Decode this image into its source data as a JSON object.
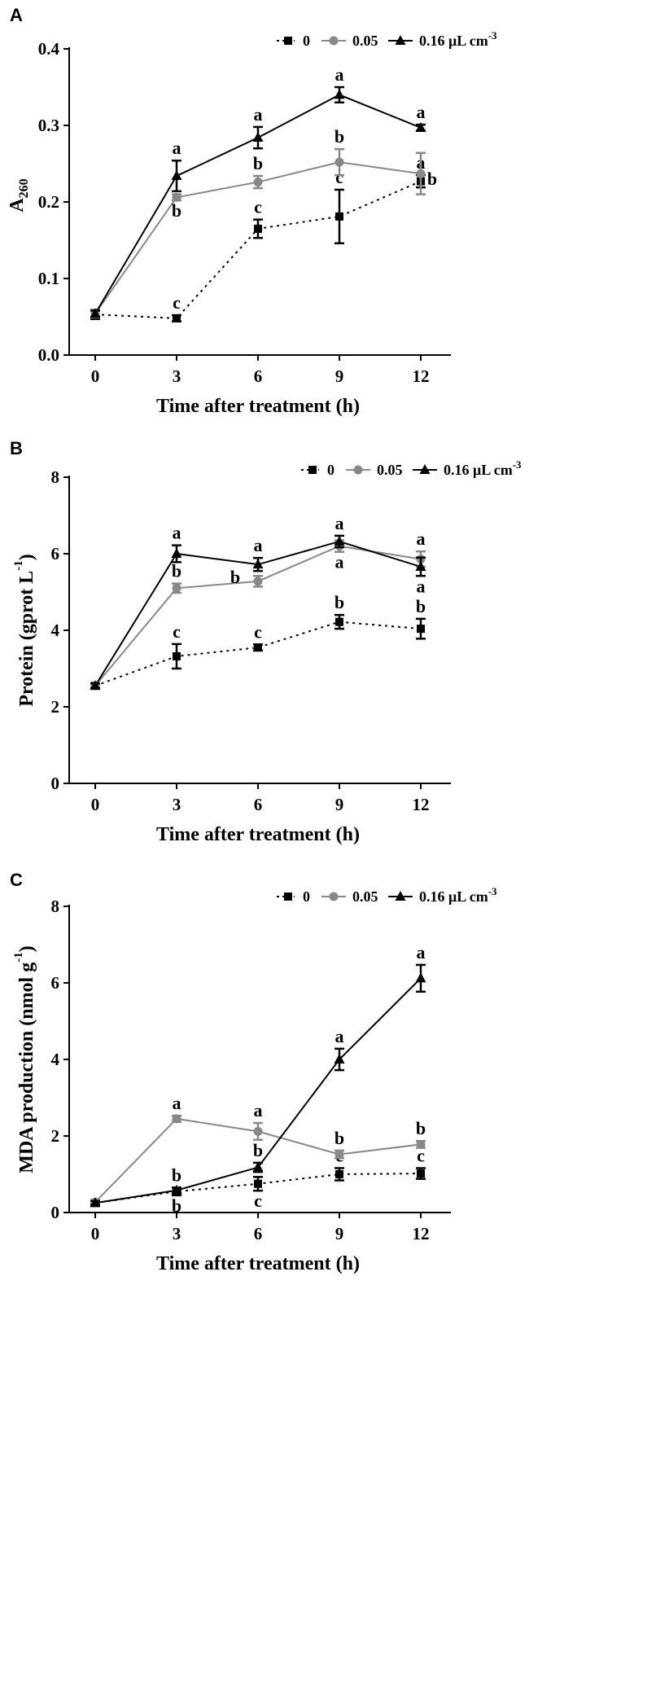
{
  "chart_data": [
    {
      "type": "line",
      "panel": "A",
      "xlabel": "Time after treatment (h)",
      "ylabel": "A",
      "ylabel_sub": "260",
      "x": [
        0,
        3,
        6,
        9,
        12
      ],
      "xticks": [
        "0",
        "3",
        "6",
        "9",
        "12"
      ],
      "ylim": [
        0,
        0.4
      ],
      "yticks": [
        "0.0",
        "0.1",
        "0.2",
        "0.3",
        "0.4"
      ],
      "legend": {
        "position": "top-right",
        "entries": [
          "0",
          "0.05",
          "0.16 μL cm",
          "-3"
        ]
      },
      "series": [
        {
          "name": "0",
          "color": "#000000",
          "style": "dotted",
          "marker": "square",
          "values": [
            0.053,
            0.048,
            0.165,
            0.181,
            0.227
          ],
          "errors": [
            0.006,
            0.004,
            0.012,
            0.035,
            0.008
          ],
          "letters": [
            "",
            "c",
            "c",
            "c",
            "a"
          ],
          "letter_pos": [
            "",
            "above",
            "above",
            "above",
            "above"
          ]
        },
        {
          "name": "0.05",
          "color": "#888888",
          "style": "solid",
          "marker": "circle",
          "values": [
            0.054,
            0.206,
            0.226,
            0.252,
            0.237
          ],
          "errors": [
            0.005,
            0.004,
            0.008,
            0.017,
            0.027
          ],
          "letters": [
            "",
            "b",
            "b",
            "b",
            "b"
          ],
          "letter_pos": [
            "",
            "below",
            "above",
            "above",
            "right"
          ]
        },
        {
          "name": "0.16 μL cm-3",
          "color": "#000000",
          "style": "solid",
          "marker": "triangle",
          "values": [
            0.054,
            0.234,
            0.284,
            0.34,
            0.297
          ],
          "errors": [
            0.004,
            0.02,
            0.014,
            0.01,
            0.004
          ],
          "letters": [
            "",
            "a",
            "a",
            "a",
            "a"
          ],
          "letter_pos": [
            "",
            "above",
            "above",
            "above",
            "above"
          ]
        }
      ]
    },
    {
      "type": "line",
      "panel": "B",
      "xlabel": "Time after treatment (h)",
      "ylabel": "Protein  (gprot L",
      "ylabel_sup": "-1",
      "ylabel_end": ")",
      "x": [
        0,
        3,
        6,
        9,
        12
      ],
      "xticks": [
        "0",
        "3",
        "6",
        "9",
        "12"
      ],
      "ylim": [
        0,
        8
      ],
      "yticks": [
        "0",
        "2",
        "4",
        "6",
        "8"
      ],
      "legend": {
        "position": "top-right",
        "entries": [
          "0",
          "0.05",
          "0.16 μL cm",
          "-3"
        ]
      },
      "series": [
        {
          "name": "0",
          "color": "#000000",
          "style": "dotted",
          "marker": "square",
          "values": [
            2.55,
            3.32,
            3.55,
            4.22,
            4.04
          ],
          "errors": [
            0.06,
            0.32,
            0.08,
            0.18,
            0.26
          ],
          "letters": [
            "",
            "c",
            "c",
            "b",
            "b"
          ],
          "letter_pos": [
            "",
            "above",
            "above",
            "above",
            "above"
          ]
        },
        {
          "name": "0.05",
          "color": "#888888",
          "style": "solid",
          "marker": "circle",
          "values": [
            2.55,
            5.1,
            5.28,
            6.2,
            5.86
          ],
          "errors": [
            0.06,
            0.12,
            0.14,
            0.15,
            0.2
          ],
          "letters": [
            "",
            "b",
            "b",
            "a",
            "a"
          ],
          "letter_pos": [
            "",
            "above",
            "left",
            "below",
            "above"
          ]
        },
        {
          "name": "0.16 μL cm-3",
          "color": "#000000",
          "style": "solid",
          "marker": "triangle",
          "values": [
            2.55,
            6.0,
            5.72,
            6.32,
            5.66
          ],
          "errors": [
            0.06,
            0.22,
            0.17,
            0.15,
            0.24
          ],
          "letters": [
            "",
            "a",
            "a",
            "a",
            "a"
          ],
          "letter_pos": [
            "",
            "above",
            "above",
            "above",
            "below"
          ]
        }
      ]
    },
    {
      "type": "line",
      "panel": "C",
      "xlabel": "Time after treatment (h)",
      "ylabel": "MDA production (nmol g",
      "ylabel_sup": "-1",
      "ylabel_end": ")",
      "x": [
        0,
        3,
        6,
        9,
        12
      ],
      "xticks": [
        "0",
        "3",
        "6",
        "9",
        "12"
      ],
      "ylim": [
        0,
        8
      ],
      "yticks": [
        "0",
        "2",
        "4",
        "6",
        "8"
      ],
      "legend": {
        "position": "top-right",
        "entries": [
          "0",
          "0.05",
          "0.16 μL cm",
          "-3"
        ]
      },
      "series": [
        {
          "name": "0",
          "color": "#000000",
          "style": "dotted",
          "marker": "square",
          "values": [
            0.25,
            0.55,
            0.75,
            1.0,
            1.02
          ],
          "errors": [
            0.05,
            0.1,
            0.18,
            0.16,
            0.14
          ],
          "letters": [
            "",
            "b",
            "c",
            "c",
            "c"
          ],
          "letter_pos": [
            "",
            "below",
            "below",
            "above",
            "above"
          ]
        },
        {
          "name": "0.05",
          "color": "#888888",
          "style": "solid",
          "marker": "circle",
          "values": [
            0.27,
            2.45,
            2.12,
            1.52,
            1.78
          ],
          "errors": [
            0.05,
            0.08,
            0.22,
            0.1,
            0.09
          ],
          "letters": [
            "",
            "a",
            "a",
            "b",
            "b"
          ],
          "letter_pos": [
            "",
            "above",
            "above",
            "above",
            "above"
          ]
        },
        {
          "name": "0.16 μL cm-3",
          "color": "#000000",
          "style": "solid",
          "marker": "triangle",
          "values": [
            0.25,
            0.58,
            1.18,
            4.0,
            6.12
          ],
          "errors": [
            0.05,
            0.07,
            0.12,
            0.28,
            0.35
          ],
          "letters": [
            "",
            "b",
            "b",
            "a",
            "a"
          ],
          "letter_pos": [
            "",
            "above",
            "above",
            "above",
            "above"
          ]
        }
      ]
    }
  ]
}
